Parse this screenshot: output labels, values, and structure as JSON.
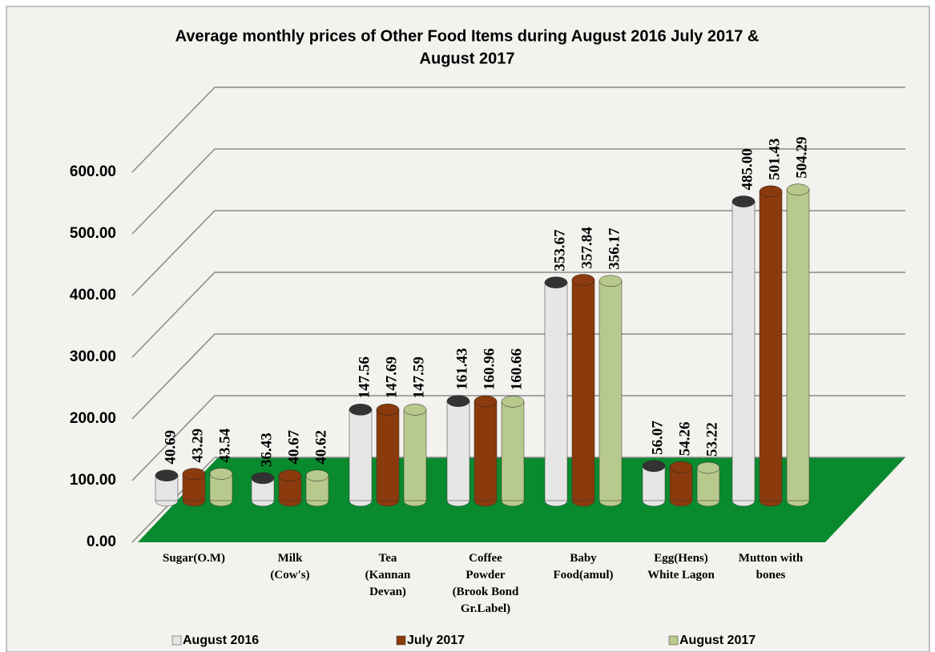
{
  "chart_data": {
    "type": "bar3d",
    "title": "Average monthly prices of Other Food Items during August 2016 July  2017 &",
    "subtitle": "August  2017",
    "categories": [
      "Sugar(O.M)",
      "Milk\n(Cow's)",
      "Tea\n(Kannan\nDevan)",
      "Coffee\nPowder\n(Brook Bond\nGr.Label)",
      "Baby\nFood(amul)",
      "Egg(Hens)\nWhite Lagon",
      "Mutton with\nbones"
    ],
    "series": [
      {
        "name": "August 2016",
        "color": "#e6e6e6",
        "values": [
          40.69,
          36.43,
          147.56,
          161.43,
          353.67,
          56.07,
          485.0
        ],
        "value_labels": [
          "40.69",
          "36.43",
          "147.56",
          "161.43",
          "353.67",
          "56.07",
          "485.00"
        ]
      },
      {
        "name": "July 2017",
        "color": "#8a3a0c",
        "values": [
          43.29,
          40.67,
          147.69,
          160.96,
          357.84,
          54.26,
          501.43
        ],
        "value_labels": [
          "43.29",
          "40.67",
          "147.69",
          "160.96",
          "357.84",
          "54.26",
          "501.43"
        ]
      },
      {
        "name": "August 2017",
        "color": "#b7c98c",
        "values": [
          43.54,
          40.62,
          147.59,
          160.66,
          356.17,
          53.22,
          504.29
        ],
        "value_labels": [
          "43.54",
          "40.62",
          "147.59",
          "160.66",
          "356.17",
          "53.22",
          "504.29"
        ]
      }
    ],
    "ylim": [
      0,
      600
    ],
    "yticks": [
      {
        "value": 0,
        "label": "0.00"
      },
      {
        "value": 100,
        "label": "100.00"
      },
      {
        "value": 200,
        "label": "200.00"
      },
      {
        "value": 300,
        "label": "300.00"
      },
      {
        "value": 400,
        "label": "400.00"
      },
      {
        "value": 500,
        "label": "500.00"
      },
      {
        "value": 600,
        "label": "600.00"
      }
    ],
    "grid": true,
    "floor_color": "#0a8a2e"
  }
}
